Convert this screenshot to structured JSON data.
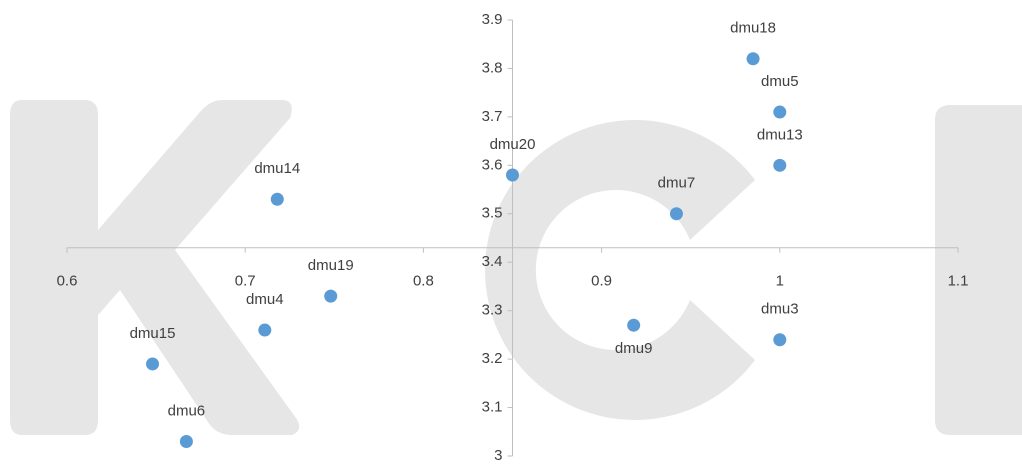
{
  "chart_data": {
    "type": "scatter",
    "points": [
      "dmu18",
      "dmu5",
      "dmu13",
      "dmu20",
      "dmu7",
      "dmu14",
      "dmu19",
      "dmu4",
      "dmu15",
      "dmu6",
      "dmu9",
      "dmu3"
    ],
    "x": [
      0.985,
      1.0,
      1.0,
      0.85,
      0.942,
      0.718,
      0.748,
      0.711,
      0.648,
      0.667,
      0.918,
      1.0
    ],
    "y": [
      3.82,
      3.71,
      3.6,
      3.58,
      3.5,
      3.53,
      3.33,
      3.26,
      3.19,
      3.03,
      3.27,
      3.24
    ],
    "color": "#5b9bd5",
    "xlim": [
      0.6,
      1.1
    ],
    "xticks": [
      0.6,
      0.7,
      0.8,
      0.9,
      1,
      1.1
    ],
    "ylim": [
      3,
      3.9
    ],
    "yticks": [
      3,
      3.1,
      3.2,
      3.3,
      3.4,
      3.5,
      3.6,
      3.7,
      3.8,
      3.9
    ],
    "x_axis_crosses_at": 3.43,
    "y_axis_crosses_at": 0.85
  }
}
